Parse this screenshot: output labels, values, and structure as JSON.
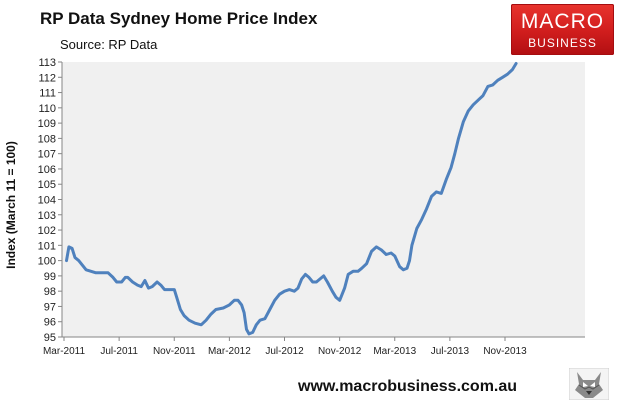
{
  "header": {
    "title": "RP Data Sydney Home Price Index",
    "source": "Source: RP Data"
  },
  "logo": {
    "line1": "MACRO",
    "line2": "BUSINESS",
    "color": "#d01d1d"
  },
  "footer": {
    "website": "www.macrobusiness.com.au",
    "mascot_icon": "wolf-icon"
  },
  "chart_data": {
    "type": "line",
    "title": "RP Data Sydney Home Price Index",
    "subtitle": "Source: RP Data",
    "ylabel": "Index (March 11 = 100)",
    "xlabel": "",
    "ylim": [
      95,
      113
    ],
    "yticks": [
      95,
      96,
      97,
      98,
      99,
      100,
      101,
      102,
      103,
      104,
      105,
      106,
      107,
      108,
      109,
      110,
      111,
      112,
      113
    ],
    "xticks": [
      "Mar-2011",
      "Jul-2011",
      "Nov-2011",
      "Mar-2012",
      "Jul-2012",
      "Nov-2012",
      "Mar-2013",
      "Jul-2013",
      "Nov-2013"
    ],
    "x_start": "Mar-2011",
    "x_end": "Jan-2014",
    "grid": false,
    "legend": "none",
    "plot_background": "#f0f0f0",
    "line_color": "#4f81bd",
    "series": [
      {
        "values": [
          [
            0.1,
            100.0
          ],
          [
            0.2,
            100.9
          ],
          [
            0.33,
            100.8
          ],
          [
            0.45,
            100.2
          ],
          [
            0.6,
            100.0
          ],
          [
            0.75,
            99.7
          ],
          [
            0.9,
            99.4
          ],
          [
            1.1,
            99.3
          ],
          [
            1.3,
            99.2
          ],
          [
            1.55,
            99.2
          ],
          [
            1.8,
            99.2
          ],
          [
            2.0,
            98.9
          ],
          [
            2.15,
            98.6
          ],
          [
            2.35,
            98.6
          ],
          [
            2.5,
            98.9
          ],
          [
            2.6,
            98.9
          ],
          [
            2.8,
            98.6
          ],
          [
            3.0,
            98.4
          ],
          [
            3.15,
            98.3
          ],
          [
            3.3,
            98.7
          ],
          [
            3.45,
            98.2
          ],
          [
            3.6,
            98.3
          ],
          [
            3.8,
            98.6
          ],
          [
            3.95,
            98.4
          ],
          [
            4.1,
            98.1
          ],
          [
            4.3,
            98.1
          ],
          [
            4.5,
            98.1
          ],
          [
            4.6,
            97.6
          ],
          [
            4.75,
            96.8
          ],
          [
            4.9,
            96.4
          ],
          [
            5.1,
            96.1
          ],
          [
            5.35,
            95.9
          ],
          [
            5.6,
            95.8
          ],
          [
            5.8,
            96.1
          ],
          [
            6.0,
            96.5
          ],
          [
            6.2,
            96.8
          ],
          [
            6.5,
            96.9
          ],
          [
            6.75,
            97.1
          ],
          [
            6.95,
            97.4
          ],
          [
            7.1,
            97.4
          ],
          [
            7.25,
            97.1
          ],
          [
            7.35,
            96.6
          ],
          [
            7.45,
            95.5
          ],
          [
            7.55,
            95.2
          ],
          [
            7.7,
            95.3
          ],
          [
            7.85,
            95.8
          ],
          [
            8.0,
            96.1
          ],
          [
            8.2,
            96.2
          ],
          [
            8.4,
            96.8
          ],
          [
            8.6,
            97.4
          ],
          [
            8.8,
            97.8
          ],
          [
            9.0,
            98.0
          ],
          [
            9.2,
            98.1
          ],
          [
            9.4,
            98.0
          ],
          [
            9.55,
            98.2
          ],
          [
            9.7,
            98.8
          ],
          [
            9.85,
            99.1
          ],
          [
            10.0,
            98.9
          ],
          [
            10.15,
            98.6
          ],
          [
            10.3,
            98.6
          ],
          [
            10.45,
            98.8
          ],
          [
            10.6,
            99.0
          ],
          [
            10.75,
            98.6
          ],
          [
            10.95,
            98.0
          ],
          [
            11.1,
            97.6
          ],
          [
            11.25,
            97.4
          ],
          [
            11.45,
            98.2
          ],
          [
            11.6,
            99.1
          ],
          [
            11.8,
            99.3
          ],
          [
            12.0,
            99.3
          ],
          [
            12.15,
            99.5
          ],
          [
            12.35,
            99.8
          ],
          [
            12.55,
            100.6
          ],
          [
            12.75,
            100.9
          ],
          [
            12.95,
            100.7
          ],
          [
            13.15,
            100.4
          ],
          [
            13.35,
            100.5
          ],
          [
            13.5,
            100.3
          ],
          [
            13.7,
            99.6
          ],
          [
            13.85,
            99.4
          ],
          [
            14.0,
            99.5
          ],
          [
            14.1,
            100.0
          ],
          [
            14.2,
            101.0
          ],
          [
            14.4,
            102.1
          ],
          [
            14.6,
            102.7
          ],
          [
            14.8,
            103.4
          ],
          [
            15.0,
            104.2
          ],
          [
            15.2,
            104.5
          ],
          [
            15.4,
            104.4
          ],
          [
            15.6,
            105.3
          ],
          [
            15.8,
            106.1
          ],
          [
            15.95,
            107.0
          ],
          [
            16.1,
            108.0
          ],
          [
            16.3,
            109.1
          ],
          [
            16.5,
            109.8
          ],
          [
            16.7,
            110.2
          ],
          [
            16.9,
            110.5
          ],
          [
            17.1,
            110.8
          ],
          [
            17.3,
            111.4
          ],
          [
            17.5,
            111.5
          ],
          [
            17.7,
            111.8
          ],
          [
            17.9,
            112.0
          ],
          [
            18.1,
            112.2
          ],
          [
            18.3,
            112.5
          ],
          [
            18.45,
            112.9
          ]
        ]
      }
    ]
  }
}
